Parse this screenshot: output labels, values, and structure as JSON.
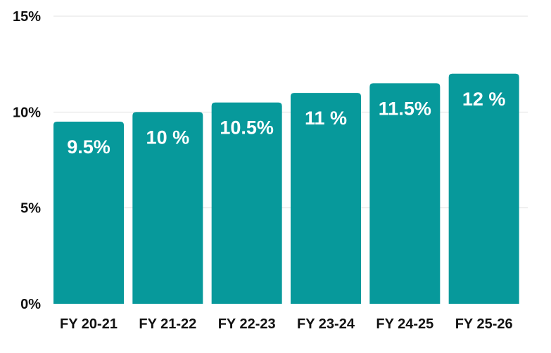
{
  "chart_data": {
    "type": "bar",
    "categories": [
      "FY 20-21",
      "FY 21-22",
      "FY 22-23",
      "FY 23-24",
      "FY 24-25",
      "FY 25-26"
    ],
    "values": [
      9.5,
      10,
      10.5,
      11,
      11.5,
      12
    ],
    "data_labels": [
      "9.5%",
      "10 %",
      "10.5%",
      "11 %",
      "11.5%",
      "12 %"
    ],
    "ylim": [
      0,
      15
    ],
    "yticks": [
      0,
      5,
      10,
      15
    ],
    "ytick_labels": [
      "0%",
      "5%",
      "10%",
      "15%"
    ],
    "grid": true,
    "bar_color": "#07999B",
    "title": "",
    "xlabel": "",
    "ylabel": ""
  }
}
